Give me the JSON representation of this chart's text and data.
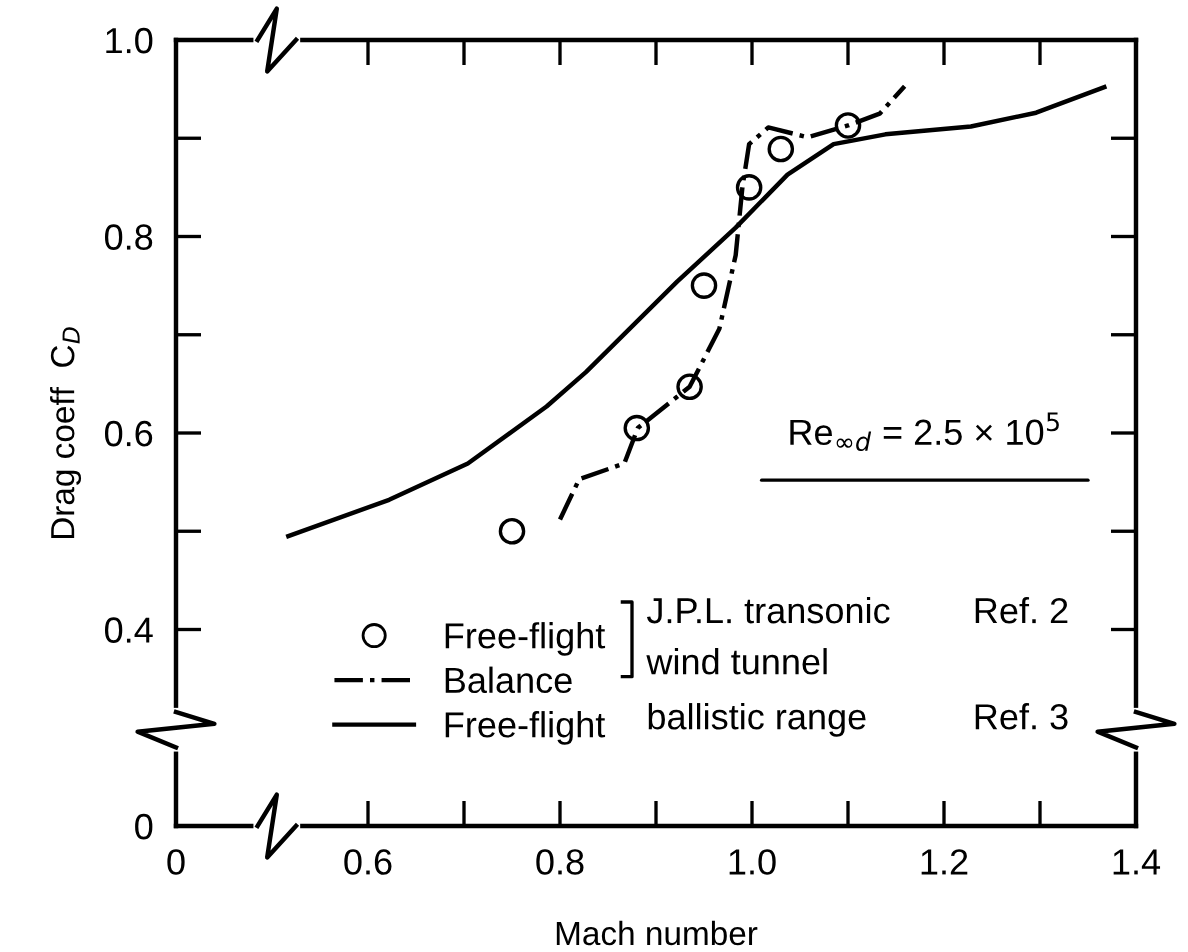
{
  "chart_data": {
    "type": "line",
    "xlabel": "Mach number",
    "ylabel": "Drag coeff  C$_{D}$",
    "xlim": [
      0.4,
      1.4
    ],
    "ylim": [
      0.2,
      1.0
    ],
    "xticks": [
      {
        "value": 0.4,
        "label": "0"
      },
      0.6,
      {
        "value": 0.7,
        "label": null
      },
      0.8,
      {
        "value": 0.9,
        "label": null
      },
      {
        "value": 1.0,
        "label": "1.0"
      },
      {
        "value": 1.1,
        "label": null
      },
      1.2,
      {
        "value": 1.3,
        "label": null
      },
      1.4
    ],
    "yticks": [
      {
        "value": 0.2,
        "label": "0"
      },
      0.4,
      {
        "value": 0.5,
        "label": null
      },
      0.6,
      {
        "value": 0.7,
        "label": null
      },
      0.8,
      {
        "value": 0.9,
        "label": null
      },
      {
        "value": 1.0,
        "label": "1.0"
      }
    ],
    "grid": false,
    "legend": "bottom",
    "series": [
      {
        "name": "Free-flight",
        "type": "scatter",
        "marker": "circle",
        "color": "#000000",
        "x": [
          0.75,
          0.88,
          0.935,
          0.95,
          0.997,
          1.03,
          1.1
        ],
        "values": [
          0.5,
          0.605,
          0.647,
          0.75,
          0.85,
          0.889,
          0.913
        ]
      },
      {
        "name": "Balance",
        "line_style": "dashdot",
        "color": "#000000",
        "x": [
          0.8,
          0.82,
          0.867,
          0.881,
          0.935,
          0.966,
          0.983,
          0.99,
          0.997,
          1.017,
          1.058,
          1.1,
          1.133,
          1.159
        ],
        "values": [
          0.512,
          0.553,
          0.569,
          0.605,
          0.647,
          0.706,
          0.781,
          0.85,
          0.894,
          0.911,
          0.901,
          0.913,
          0.925,
          0.953
        ]
      },
      {
        "name": "Free-flight",
        "line_style": "solid",
        "color": "#000000",
        "x": [
          0.517,
          0.622,
          0.704,
          0.786,
          0.827,
          0.922,
          0.983,
          1.037,
          1.085,
          1.139,
          1.228,
          1.296,
          1.367
        ],
        "values": [
          0.495,
          0.532,
          0.569,
          0.627,
          0.662,
          0.754,
          0.809,
          0.863,
          0.894,
          0.904,
          0.912,
          0.926,
          0.952
        ]
      }
    ],
    "annotations": [
      "J.P.L. transonic",
      "wind tunnel",
      "Ref. 2",
      "ballistic range",
      "Ref. 3",
      "Re$_{∞d}$ = 2.5 × 10$^{5}$"
    ]
  }
}
